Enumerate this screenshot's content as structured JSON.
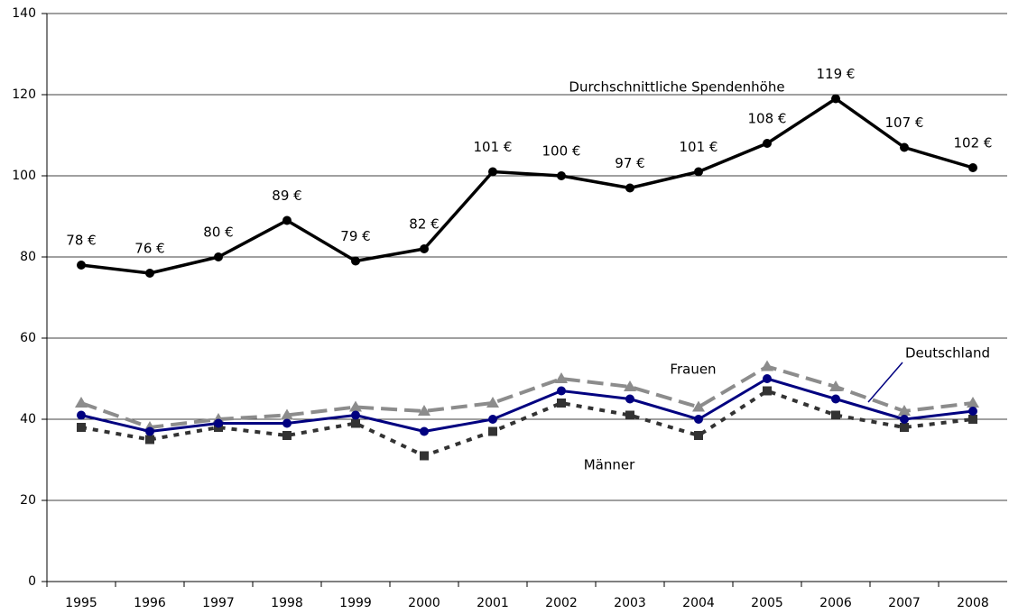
{
  "chart_data": {
    "type": "line",
    "categories": [
      "1995",
      "1996",
      "1997",
      "1998",
      "1999",
      "2000",
      "2001",
      "2002",
      "2003",
      "2004",
      "2005",
      "2006",
      "2007",
      "2008"
    ],
    "series": [
      {
        "name": "Durchschnittliche Spendenhöhe",
        "color": "#000000",
        "values": [
          78,
          76,
          80,
          89,
          79,
          82,
          101,
          100,
          97,
          101,
          108,
          119,
          107,
          102
        ],
        "value_labels": [
          "78 €",
          "76 €",
          "80 €",
          "89 €",
          "79 €",
          "82 €",
          "101 €",
          "100 €",
          "97 €",
          "101 €",
          "108 €",
          "119 €",
          "107 €",
          "102 €"
        ]
      },
      {
        "name": "Frauen",
        "color": "#8c8c8c",
        "values": [
          44,
          38,
          40,
          41,
          43,
          42,
          44,
          50,
          48,
          43,
          53,
          48,
          42,
          44
        ]
      },
      {
        "name": "Deutschland",
        "color": "#000080",
        "values": [
          41,
          37,
          39,
          39,
          41,
          37,
          40,
          47,
          45,
          40,
          50,
          45,
          40,
          42
        ]
      },
      {
        "name": "Männer",
        "color": "#333333",
        "values": [
          38,
          35,
          38,
          36,
          39,
          31,
          37,
          44,
          41,
          36,
          47,
          41,
          38,
          40
        ]
      }
    ],
    "ylim": [
      0,
      140
    ],
    "yticks": [
      0,
      20,
      40,
      60,
      80,
      100,
      120,
      140
    ],
    "grid": true
  }
}
